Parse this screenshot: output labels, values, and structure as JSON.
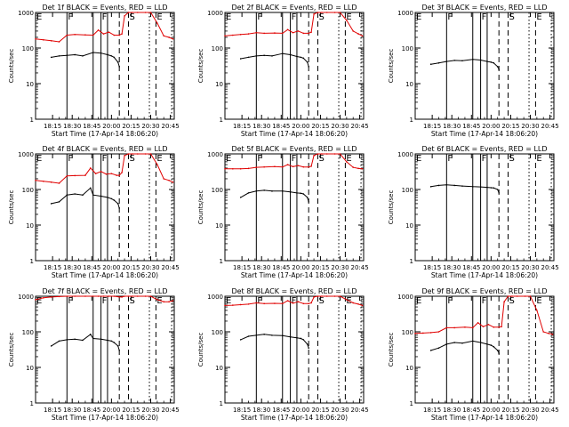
{
  "figure": {
    "colors": {
      "events": "#000000",
      "lld": "#e00000",
      "axis": "#000000"
    },
    "x_tick_labels": [
      "18:15",
      "18:30",
      "18:45",
      "20:00",
      "20:15",
      "20:30",
      "20:45"
    ],
    "x_tick_minutes": [
      15,
      30,
      45,
      60,
      75,
      90,
      105
    ],
    "xlim_minutes": [
      2,
      108
    ],
    "y_tick_labels": [
      "1",
      "10",
      "100",
      "1000"
    ],
    "y_tick_values": [
      1,
      10,
      100,
      1000
    ],
    "ylim": [
      1,
      1000
    ],
    "y_scale": "log",
    "ylabel": "Counts/sec",
    "xlabel": "Start Time (17-Apr-14 18:06:20)",
    "markers": [
      {
        "label": "E",
        "x": 2,
        "style": "solid"
      },
      {
        "label": "F",
        "x": 26,
        "style": "solid"
      },
      {
        "label": "",
        "x": 46,
        "style": "solid"
      },
      {
        "label": "F",
        "x": 52,
        "style": "solid"
      },
      {
        "label": "",
        "x": 57,
        "style": "solid"
      },
      {
        "label": "",
        "x": 66,
        "style": "dashed"
      },
      {
        "label": "S",
        "x": 73,
        "style": "dashed"
      },
      {
        "label": "",
        "x": 89,
        "style": "dotted"
      },
      {
        "label": "E",
        "x": 94,
        "style": "dashed"
      },
      {
        "label": "",
        "x": 106,
        "style": "dotted"
      }
    ]
  },
  "chart_data": [
    {
      "type": "line",
      "title": "Det 1f BLACK = Events, RED = LLD",
      "series": [
        {
          "name": "Events",
          "x": [
            14,
            20,
            26,
            32,
            38,
            46,
            52,
            57,
            60,
            62,
            65,
            66
          ],
          "values": [
            55,
            60,
            62,
            65,
            60,
            75,
            72,
            65,
            60,
            55,
            40,
            30
          ]
        },
        {
          "name": "LLD",
          "x": [
            2,
            8,
            14,
            20,
            26,
            32,
            40,
            46,
            50,
            54,
            58,
            62,
            66,
            68,
            70,
            73,
            76,
            80,
            86,
            90,
            95,
            100,
            104,
            107
          ],
          "values": [
            180,
            170,
            160,
            150,
            230,
            240,
            235,
            230,
            320,
            250,
            280,
            230,
            230,
            250,
            800,
            1000,
            1000,
            1000,
            1000,
            1000,
            500,
            220,
            200,
            180
          ]
        }
      ]
    },
    {
      "type": "line",
      "title": "Det 2f BLACK = Events, RED = LLD",
      "series": [
        {
          "name": "Events",
          "x": [
            14,
            20,
            26,
            32,
            38,
            46,
            52,
            57,
            60,
            62,
            65,
            66
          ],
          "values": [
            50,
            55,
            60,
            62,
            60,
            70,
            65,
            58,
            55,
            52,
            40,
            30
          ]
        },
        {
          "name": "LLD",
          "x": [
            2,
            8,
            14,
            20,
            26,
            32,
            40,
            46,
            50,
            54,
            58,
            62,
            66,
            68,
            70,
            73,
            76,
            80,
            86,
            90,
            95,
            100,
            104,
            107
          ],
          "values": [
            220,
            230,
            240,
            250,
            270,
            260,
            265,
            260,
            330,
            270,
            300,
            260,
            260,
            280,
            900,
            1000,
            1000,
            1000,
            1000,
            1000,
            600,
            300,
            250,
            220
          ]
        }
      ]
    },
    {
      "type": "line",
      "title": "Det 3f BLACK = Events, RED = LLD",
      "series": [
        {
          "name": "Events",
          "x": [
            14,
            20,
            26,
            32,
            38,
            46,
            52,
            57,
            60,
            62,
            65,
            66
          ],
          "values": [
            35,
            38,
            42,
            45,
            44,
            48,
            46,
            42,
            40,
            38,
            30,
            25
          ]
        }
      ]
    },
    {
      "type": "line",
      "title": "Det 4f BLACK = Events, RED = LLD",
      "series": [
        {
          "name": "Events",
          "x": [
            14,
            20,
            26,
            32,
            38,
            44,
            46,
            52,
            57,
            60,
            62,
            65,
            66
          ],
          "values": [
            40,
            45,
            70,
            75,
            70,
            110,
            70,
            65,
            60,
            55,
            50,
            40,
            30
          ]
        },
        {
          "name": "LLD",
          "x": [
            2,
            8,
            14,
            20,
            26,
            32,
            40,
            44,
            48,
            52,
            56,
            60,
            64,
            66,
            68,
            70,
            73,
            76,
            80,
            86,
            90,
            95,
            100,
            104,
            107
          ],
          "values": [
            180,
            170,
            160,
            150,
            240,
            245,
            250,
            400,
            280,
            320,
            270,
            280,
            250,
            250,
            300,
            900,
            1000,
            1000,
            1000,
            1000,
            1000,
            500,
            200,
            180,
            160
          ]
        }
      ]
    },
    {
      "type": "line",
      "title": "Det 5f BLACK = Events, RED = LLD",
      "series": [
        {
          "name": "Events",
          "x": [
            14,
            20,
            26,
            32,
            38,
            46,
            52,
            57,
            60,
            62,
            65,
            66
          ],
          "values": [
            60,
            80,
            90,
            95,
            90,
            90,
            85,
            80,
            78,
            75,
            60,
            45
          ]
        },
        {
          "name": "LLD",
          "x": [
            2,
            8,
            14,
            20,
            26,
            32,
            40,
            46,
            50,
            54,
            58,
            62,
            66,
            68,
            70,
            73,
            76,
            80,
            86,
            90,
            95,
            100,
            104,
            107
          ],
          "values": [
            380,
            380,
            380,
            390,
            420,
            430,
            440,
            430,
            500,
            440,
            470,
            430,
            430,
            450,
            900,
            1000,
            1000,
            1000,
            1000,
            1000,
            600,
            420,
            390,
            380
          ]
        }
      ]
    },
    {
      "type": "line",
      "title": "Det 6f BLACK = Events, RED = LLD",
      "series": [
        {
          "name": "Events",
          "x": [
            14,
            20,
            26,
            32,
            38,
            46,
            52,
            57,
            60,
            62,
            65,
            66
          ],
          "values": [
            120,
            130,
            135,
            130,
            125,
            120,
            118,
            115,
            112,
            110,
            100,
            80
          ]
        }
      ]
    },
    {
      "type": "line",
      "title": "Det 7f BLACK = Events, RED = LLD",
      "series": [
        {
          "name": "Events",
          "x": [
            14,
            20,
            26,
            32,
            38,
            44,
            46,
            52,
            57,
            60,
            62,
            65,
            66
          ],
          "values": [
            40,
            55,
            60,
            62,
            58,
            85,
            65,
            62,
            58,
            55,
            50,
            40,
            30
          ]
        },
        {
          "name": "LLD",
          "x": [
            2,
            8,
            14,
            20,
            26,
            32,
            40,
            46,
            50,
            54,
            58,
            62,
            66,
            68,
            70,
            73,
            76,
            80,
            86,
            90,
            95,
            100,
            104,
            107
          ],
          "values": [
            800,
            900,
            950,
            980,
            1000,
            1000,
            1000,
            1000,
            1000,
            1000,
            1000,
            1000,
            950,
            950,
            1000,
            1000,
            1000,
            1000,
            1000,
            1000,
            800,
            700,
            700,
            750
          ]
        }
      ]
    },
    {
      "type": "line",
      "title": "Det 8f BLACK = Events, RED = LLD",
      "series": [
        {
          "name": "Events",
          "x": [
            14,
            20,
            26,
            32,
            38,
            46,
            52,
            57,
            60,
            62,
            65,
            66
          ],
          "values": [
            60,
            75,
            80,
            85,
            80,
            78,
            72,
            68,
            65,
            60,
            45,
            35
          ]
        },
        {
          "name": "LLD",
          "x": [
            2,
            8,
            14,
            20,
            26,
            32,
            40,
            46,
            50,
            54,
            58,
            62,
            66,
            68,
            70,
            73,
            76,
            80,
            86,
            90,
            95,
            100,
            104,
            107
          ],
          "values": [
            550,
            560,
            580,
            600,
            650,
            620,
            630,
            620,
            750,
            640,
            700,
            620,
            620,
            650,
            950,
            1000,
            1000,
            1000,
            1000,
            1000,
            800,
            650,
            600,
            550
          ]
        }
      ]
    },
    {
      "type": "line",
      "title": "Det 9f BLACK = Events, RED = LLD",
      "series": [
        {
          "name": "Events",
          "x": [
            14,
            20,
            26,
            32,
            38,
            46,
            52,
            57,
            60,
            62,
            65,
            66
          ],
          "values": [
            30,
            35,
            45,
            50,
            48,
            55,
            50,
            45,
            42,
            38,
            30,
            25
          ]
        },
        {
          "name": "LLD",
          "x": [
            2,
            8,
            14,
            20,
            26,
            32,
            40,
            46,
            50,
            54,
            58,
            62,
            66,
            68,
            70,
            73,
            76,
            80,
            86,
            90,
            95,
            100,
            104,
            107
          ],
          "values": [
            90,
            92,
            95,
            100,
            130,
            130,
            135,
            130,
            180,
            140,
            160,
            135,
            135,
            140,
            700,
            1000,
            1000,
            1000,
            1000,
            1000,
            400,
            100,
            90,
            85
          ]
        }
      ]
    }
  ]
}
